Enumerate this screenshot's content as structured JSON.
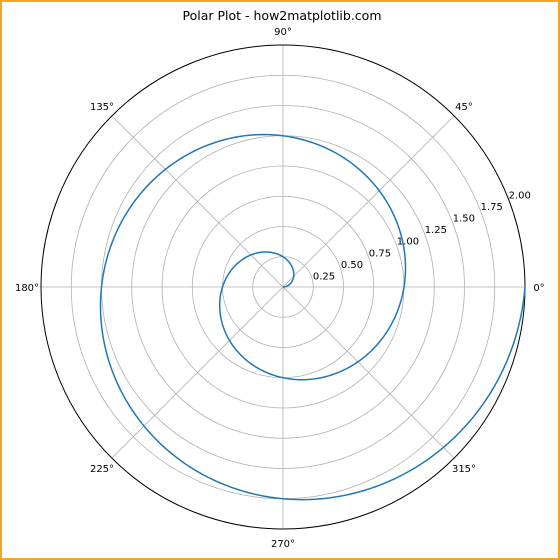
{
  "chart_data": {
    "type": "line",
    "projection": "polar",
    "title": "Polar Plot - how2matplotlib.com",
    "theta_ticks": [
      "0°",
      "45°",
      "90°",
      "135°",
      "180°",
      "225°",
      "270°",
      "315°"
    ],
    "theta_tick_degrees": [
      0,
      45,
      90,
      135,
      180,
      225,
      270,
      315
    ],
    "r_ticks": [
      0.25,
      0.5,
      0.75,
      1.0,
      1.25,
      1.5,
      1.75,
      2.0
    ],
    "r_tick_labels": [
      "0.25",
      "0.50",
      "0.75",
      "1.00",
      "1.25",
      "1.50",
      "1.75",
      "2.00"
    ],
    "r_label_angle_deg": 22.5,
    "rlim": [
      0,
      2.0
    ],
    "grid": true,
    "series": [
      {
        "color": "#1f77b4",
        "curve": "spiral r = theta / (2*pi), theta from 0 to 4*pi",
        "theta": [
          0,
          0.3927,
          0.7854,
          1.1781,
          1.5708,
          1.9635,
          2.3562,
          2.7489,
          3.1416,
          3.5343,
          3.927,
          4.3197,
          4.7124,
          5.1051,
          5.4978,
          5.8905,
          6.2832,
          6.6759,
          7.0686,
          7.4613,
          7.854,
          8.2467,
          8.6394,
          9.0321,
          9.4248,
          9.8175,
          10.2102,
          10.6029,
          10.9956,
          11.3883,
          11.781,
          12.1737,
          12.5664
        ],
        "r": [
          0,
          0.0625,
          0.125,
          0.1875,
          0.25,
          0.3125,
          0.375,
          0.4375,
          0.5,
          0.5625,
          0.625,
          0.6875,
          0.75,
          0.8125,
          0.875,
          0.9375,
          1.0,
          1.0625,
          1.125,
          1.1875,
          1.25,
          1.3125,
          1.375,
          1.4375,
          1.5,
          1.5625,
          1.625,
          1.6875,
          1.75,
          1.8125,
          1.875,
          1.9375,
          2.0
        ]
      }
    ]
  }
}
